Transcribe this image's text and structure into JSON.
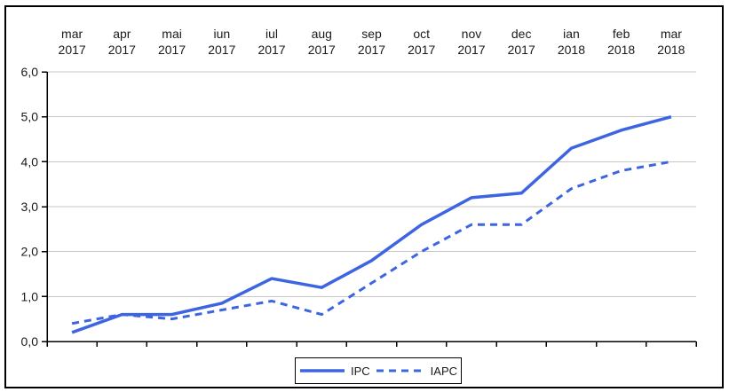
{
  "window": {
    "background_color": "#ffffff",
    "border_color": "#000000"
  },
  "chart_data": {
    "type": "line",
    "title": "",
    "xlabel": "",
    "ylabel": "",
    "categories": [
      "mar 2017",
      "apr 2017",
      "mai 2017",
      "iun 2017",
      "iul 2017",
      "aug 2017",
      "sep 2017",
      "oct 2017",
      "nov 2017",
      "dec 2017",
      "ian 2018",
      "feb 2018",
      "mar 2018"
    ],
    "series": [
      {
        "name": "IPC",
        "style": "solid",
        "color": "#3d64e1",
        "values": [
          0.2,
          0.6,
          0.6,
          0.85,
          1.4,
          1.2,
          1.8,
          2.6,
          3.2,
          3.3,
          4.3,
          4.7,
          5.0
        ]
      },
      {
        "name": "IAPC",
        "style": "dashed",
        "color": "#3d64e1",
        "values": [
          0.4,
          0.6,
          0.5,
          0.7,
          0.9,
          0.6,
          1.3,
          2.0,
          2.6,
          2.6,
          3.4,
          3.8,
          4.0
        ]
      }
    ],
    "ylim": [
      0,
      6
    ],
    "y_tick_step": 1,
    "y_tick_labels": [
      "0,0",
      "1,0",
      "2,0",
      "3,0",
      "4,0",
      "5,0",
      "6,0"
    ],
    "x_labels_position": "top",
    "grid": "horizontal",
    "gridline_color": "#c6c6c6",
    "axis_color": "#000000",
    "text_color": "#1a1a1a",
    "legend": {
      "position": "bottom-center",
      "bordered": true,
      "entries": [
        "IPC",
        "IAPC"
      ]
    }
  }
}
